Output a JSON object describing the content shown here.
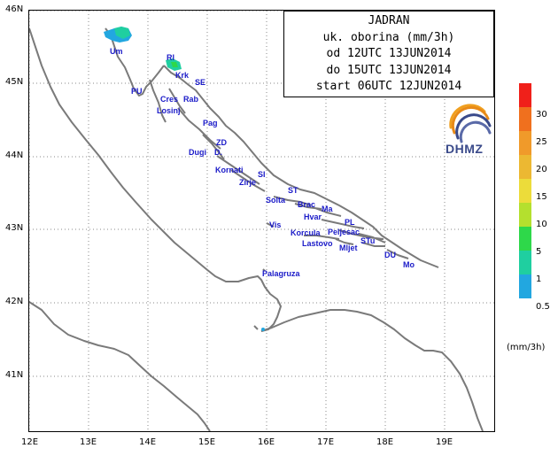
{
  "map": {
    "lon_ticks": [
      "12E",
      "13E",
      "14E",
      "15E",
      "16E",
      "17E",
      "18E",
      "19E"
    ],
    "lat_ticks": [
      "46N",
      "45N",
      "44N",
      "43N",
      "42N",
      "41N"
    ],
    "coast_color": "#7a7a7a",
    "grid_color": "#8a8a8a",
    "precip_colors": [
      "#22a7e0",
      "#1fcfa0",
      "#2ed84a"
    ]
  },
  "places": [
    "Um",
    "RI",
    "Krk",
    "SE",
    "PU",
    "Cres",
    "Rab",
    "Losinj",
    "Pag",
    "ZD",
    "Dugi",
    "D.",
    "Kornati",
    "SI",
    "Zirje",
    "ST",
    "Solta",
    "Brac",
    "Ma",
    "Hvar",
    "PL",
    "Vis",
    "Korcula",
    "Peljesac",
    "Lastovo",
    "Mljet",
    "STu",
    "DU",
    "Mo",
    "Palagruza"
  ],
  "info": {
    "title": "JADRAN",
    "line1": "uk. oborina (mm/3h)",
    "line2": "od 12UTC 13JUN2014",
    "line3": "do 15UTC 13JUN2014",
    "line4": "start 06UTC 12JUN2014"
  },
  "logo": {
    "text": "DHMZ"
  },
  "legend": {
    "labels": [
      "30",
      "25",
      "20",
      "15",
      "10",
      "5",
      "1",
      "0.5"
    ],
    "colors": [
      "#f0201a",
      "#f0701e",
      "#f09a2a",
      "#ecb832",
      "#ecdc3a",
      "#b4e02e",
      "#2ed84a",
      "#1fcfa0",
      "#22a7e0"
    ],
    "unit": "(mm/3h)"
  }
}
